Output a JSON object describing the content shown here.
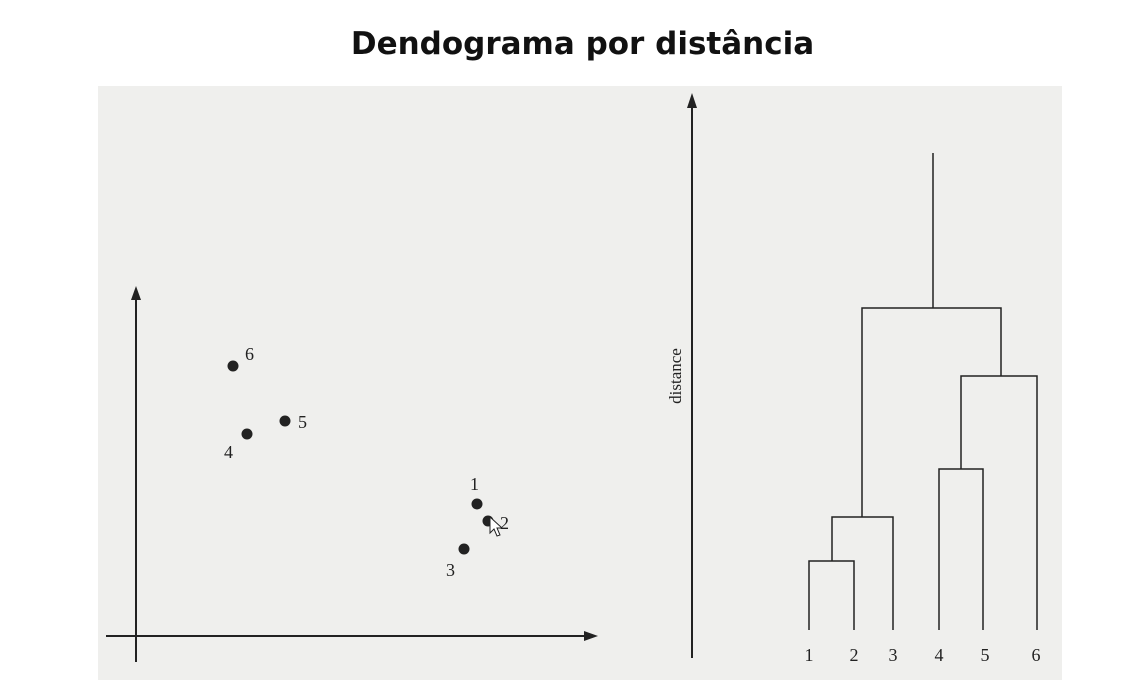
{
  "title": "Dendograma por distância",
  "scatter": {
    "points": [
      {
        "label": "1"
      },
      {
        "label": "2"
      },
      {
        "label": "3"
      },
      {
        "label": "4"
      },
      {
        "label": "5"
      },
      {
        "label": "6"
      }
    ]
  },
  "dendrogram": {
    "ylabel": "distance",
    "leaves": [
      "1",
      "2",
      "3",
      "4",
      "5",
      "6"
    ]
  },
  "colors": {
    "ink": "#222222",
    "background": "#efefed",
    "title": "#111111"
  }
}
